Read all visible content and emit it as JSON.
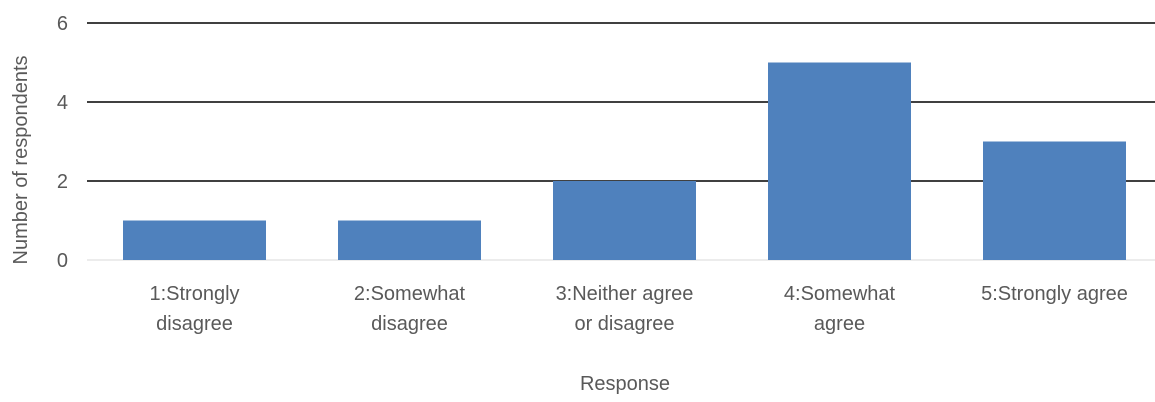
{
  "chart_data": {
    "type": "bar",
    "categories": [
      [
        "1:Strongly",
        "disagree"
      ],
      [
        "2:Somewhat",
        "disagree"
      ],
      [
        "3:Neither agree",
        "or disagree"
      ],
      [
        "4:Somewhat",
        "agree"
      ],
      [
        "5:Strongly agree"
      ]
    ],
    "values": [
      1,
      1,
      2,
      5,
      3
    ],
    "title": "",
    "xlabel": "Response",
    "ylabel": "Number of respondents",
    "ylim": [
      0,
      6
    ],
    "yticks": [
      0,
      2,
      4,
      6
    ],
    "grid": true,
    "legend": "none",
    "bar_color": "#4f81bd",
    "text_color": "#595959",
    "grid_color": "#000000"
  }
}
